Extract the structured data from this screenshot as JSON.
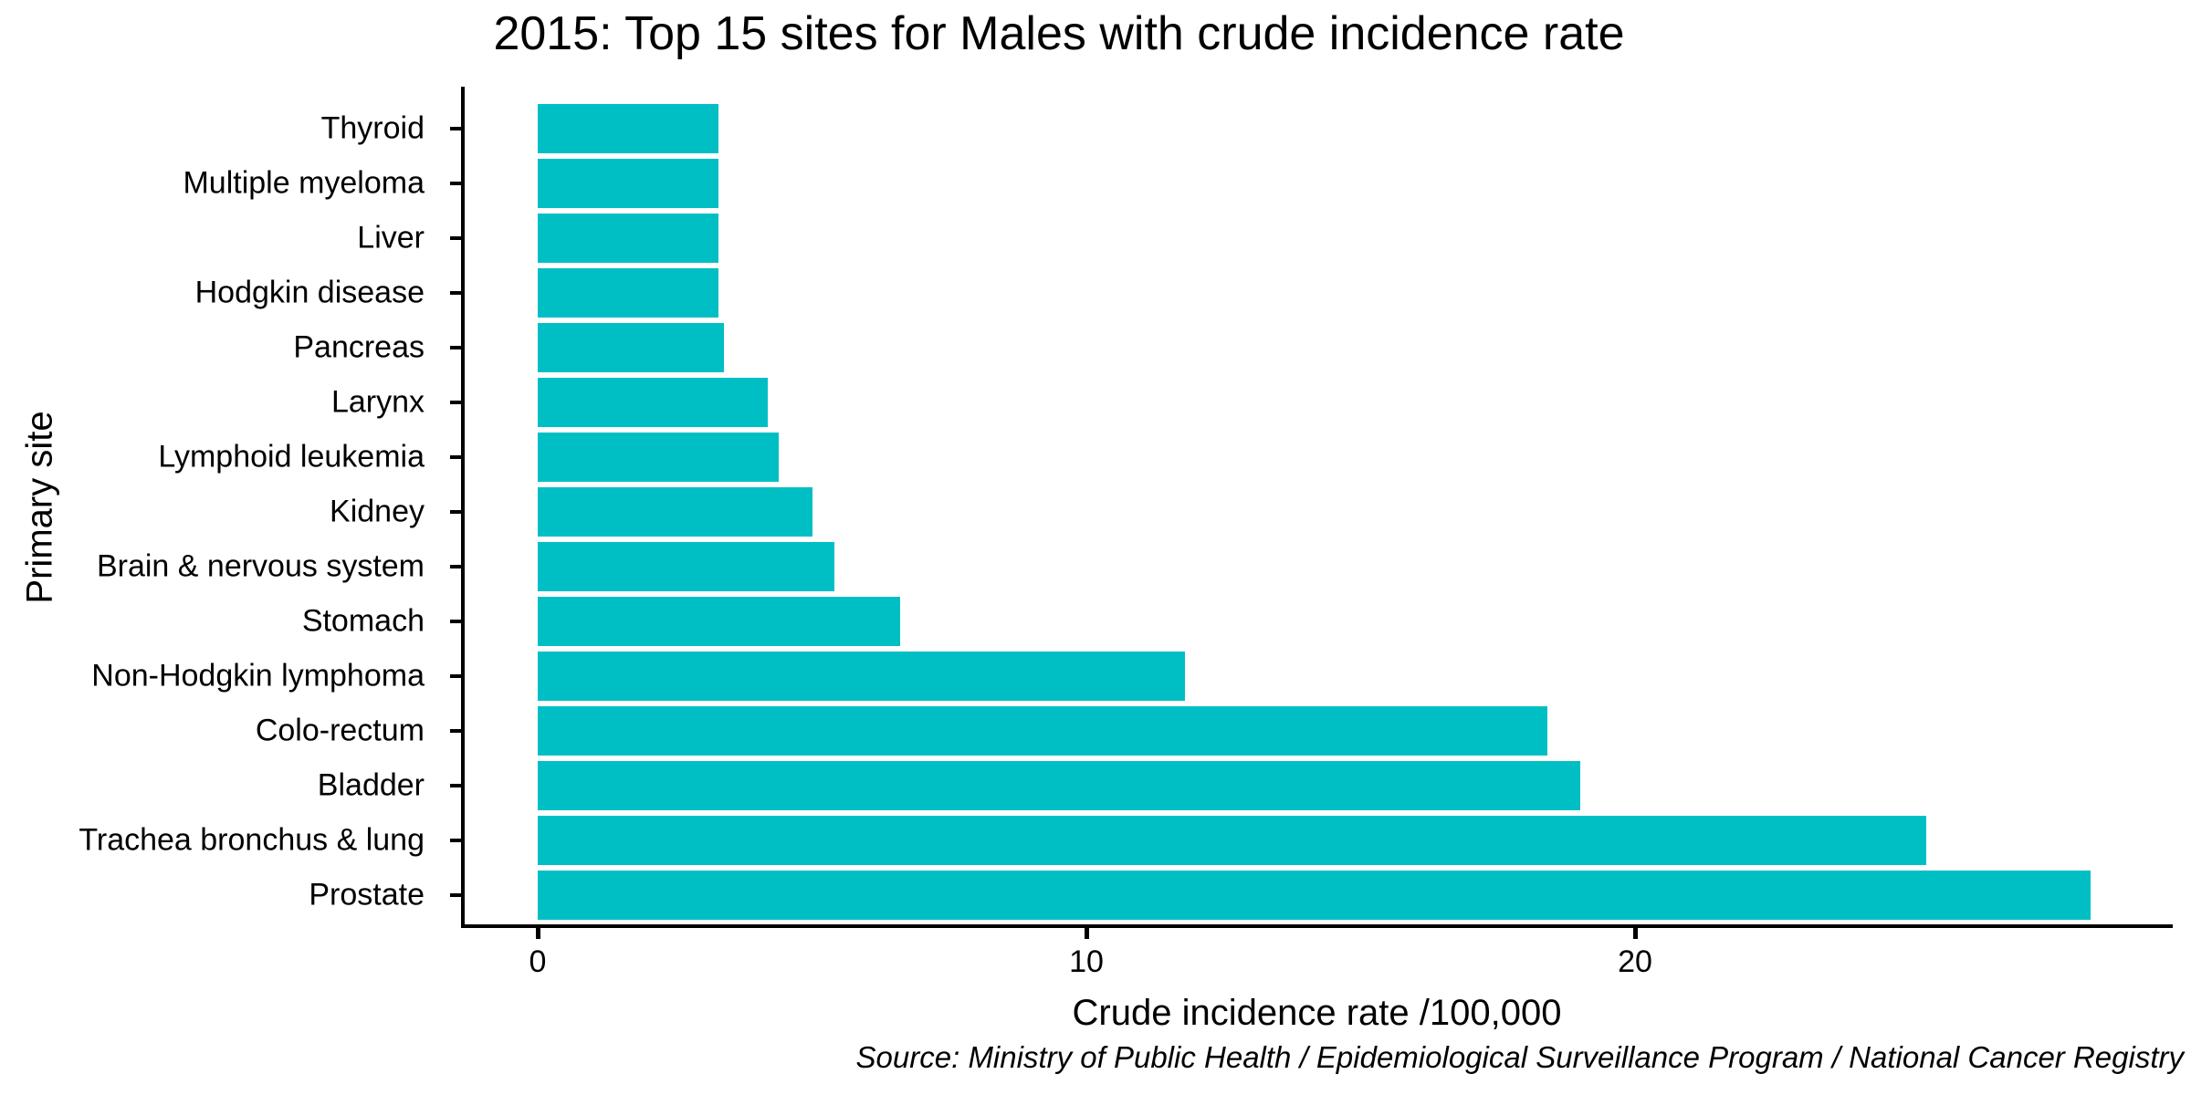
{
  "chart_data": {
    "type": "bar",
    "orientation": "horizontal",
    "title": "2015: Top 15 sites for Males with crude incidence rate",
    "xlabel": "Crude incidence rate /100,000",
    "ylabel": "Primary site",
    "source": "Source: Ministry of Public Health / Epidemiological Surveillance Program / National Cancer Registry",
    "categories": [
      "Thyroid",
      "Multiple myeloma",
      "Liver",
      "Hodgkin disease",
      "Pancreas",
      "Larynx",
      "Lymphoid leukemia",
      "Kidney",
      "Brain & nervous system",
      "Stomach",
      "Non-Hodgkin lymphoma",
      "Colo-rectum",
      "Bladder",
      "Trachea bronchus & lung",
      "Prostate"
    ],
    "values": [
      3.3,
      3.3,
      3.3,
      3.3,
      3.4,
      4.2,
      4.4,
      5.0,
      5.4,
      6.6,
      11.8,
      18.4,
      19.0,
      25.3,
      28.3
    ],
    "x_ticks": [
      0,
      10,
      20
    ],
    "xlim": [
      0,
      29.8
    ],
    "grid": false,
    "legend": "none",
    "bar_color": "#00BFC4",
    "axis_color": "#000000",
    "text_color": "#000000",
    "background_color": "#FFFFFF"
  }
}
